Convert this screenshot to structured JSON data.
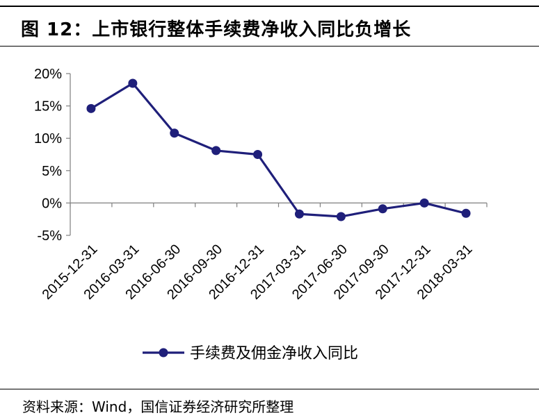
{
  "figure": {
    "title": "图 12：上市银行整体手续费净收入同比负增长",
    "source": "资料来源：Wind，国信证券经济研究所整理"
  },
  "chart_data": {
    "type": "line",
    "categories": [
      "2015-12-31",
      "2016-03-31",
      "2016-06-30",
      "2016-09-30",
      "2016-12-31",
      "2017-03-31",
      "2017-06-30",
      "2017-09-30",
      "2017-12-31",
      "2018-03-31"
    ],
    "series": [
      {
        "name": "手续费及佣金净收入同比",
        "values": [
          14.6,
          18.5,
          10.8,
          8.1,
          7.5,
          -1.7,
          -2.1,
          -0.9,
          0.0,
          -1.6
        ],
        "color": "#1f1f7a"
      }
    ],
    "yticks": [
      "20%",
      "15%",
      "10%",
      "5%",
      "0%",
      "-5%"
    ],
    "ytick_values": [
      20,
      15,
      10,
      5,
      0,
      -5
    ],
    "ylim": [
      -5,
      20
    ],
    "legend_position": "bottom",
    "grid": false
  }
}
